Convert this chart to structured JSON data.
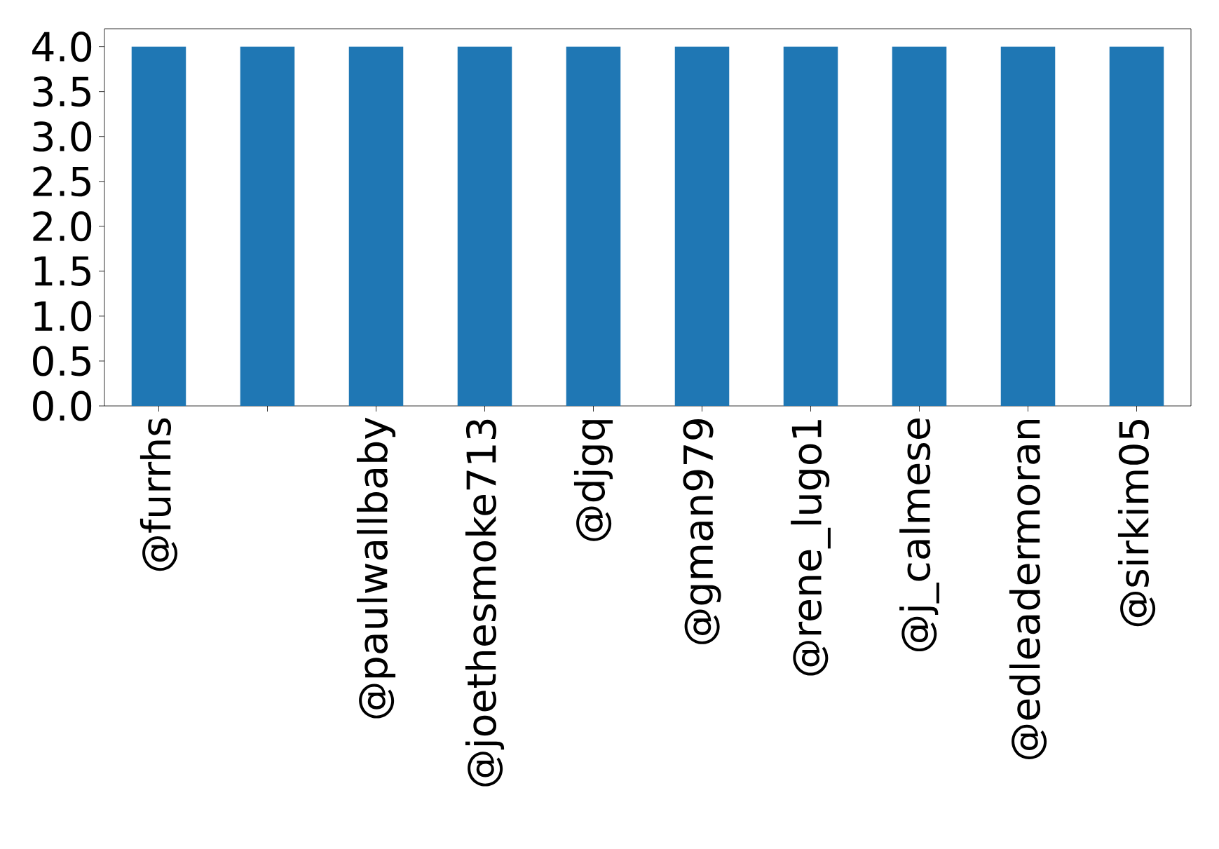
{
  "chart_data": {
    "type": "bar",
    "categories": [
      "@furrhs",
      null,
      "@paulwallbaby",
      "@joethesmoke713",
      "@djgq",
      "@gman979",
      "@rene_lugo1",
      "@j_calmese",
      "@edleadermoran",
      "@sirkim05"
    ],
    "values": [
      4.0,
      4.0,
      4.0,
      4.0,
      4.0,
      4.0,
      4.0,
      4.0,
      4.0,
      4.0
    ],
    "color": "#1f77b4",
    "ylim": [
      0,
      4.2
    ],
    "yticks": [
      {
        "value": 0,
        "label": "0.0"
      },
      {
        "value": 0.5,
        "label": "0.5"
      },
      {
        "value": 1,
        "label": "1.0"
      },
      {
        "value": 1.5,
        "label": "1.5"
      },
      {
        "value": 2,
        "label": "2.0"
      },
      {
        "value": 2.5,
        "label": "2.5"
      },
      {
        "value": 3,
        "label": "3.0"
      },
      {
        "value": 3.5,
        "label": "3.5"
      },
      {
        "value": 4,
        "label": "4.0"
      }
    ],
    "grid": false
  }
}
